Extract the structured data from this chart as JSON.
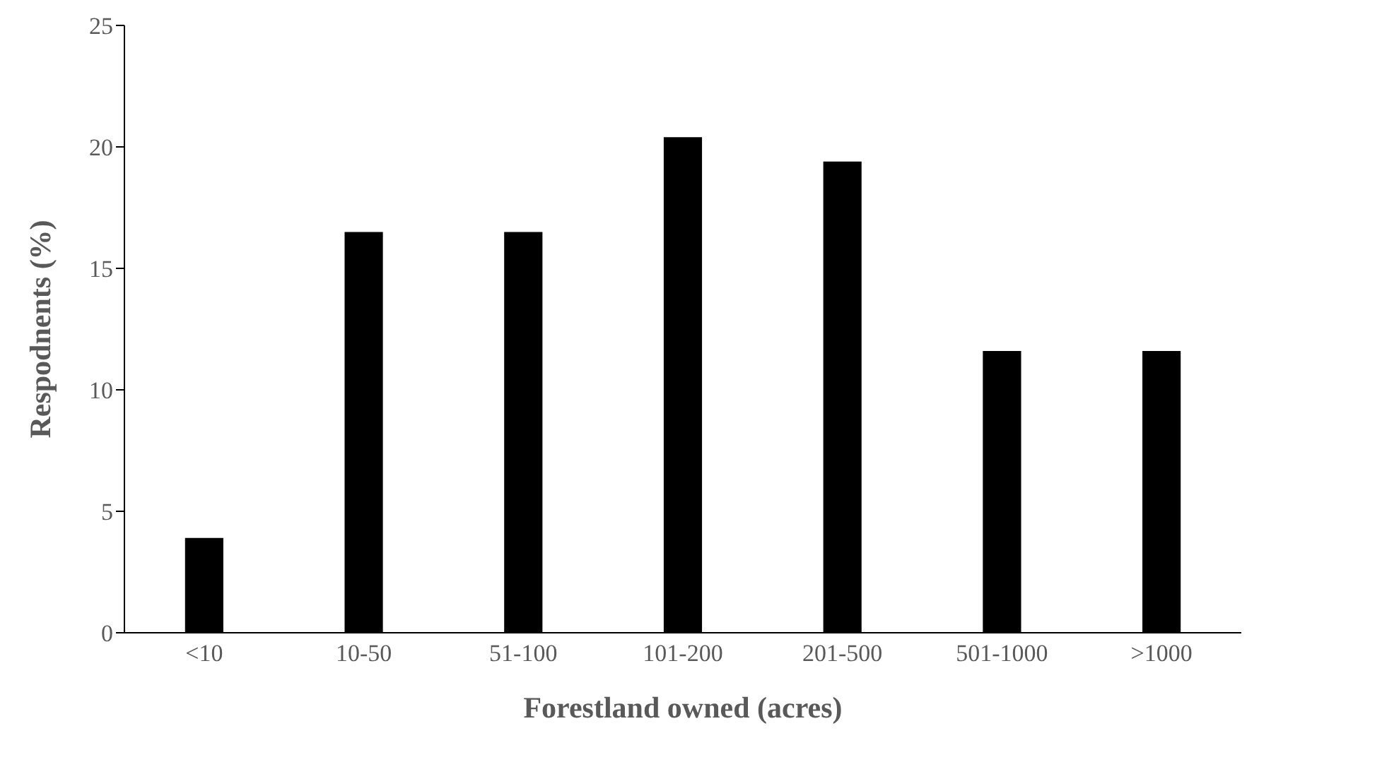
{
  "chart_data": {
    "type": "bar",
    "xlabel": "Forestland owned (acres)",
    "ylabel": "Respodnents (%)",
    "categories": [
      "<10",
      "10-50",
      "51-100",
      "101-200",
      "201-500",
      "501-1000",
      ">1000"
    ],
    "values": [
      3.9,
      16.5,
      16.5,
      20.4,
      19.4,
      11.6,
      11.6
    ],
    "color": "#000000",
    "ylim": [
      0,
      25
    ],
    "yticks": [
      0,
      5,
      10,
      15,
      20,
      25
    ],
    "grid": false,
    "legend": false
  }
}
